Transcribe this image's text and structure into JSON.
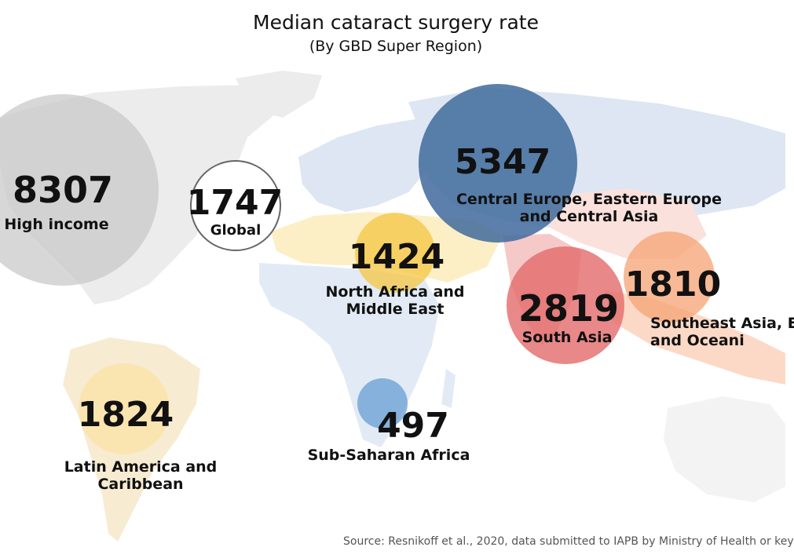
{
  "title": "Median cataract surgery rate",
  "subtitle": "(By GBD Super Region)",
  "source": "Source: Resnikoff et al., 2020, data submitted to IAPB by Ministry of Health or key",
  "chart_data": {
    "type": "bubble-map",
    "regions": [
      {
        "id": "high-income",
        "value": 8307,
        "label_lines": [
          "High income"
        ],
        "color": "#c9c9c9"
      },
      {
        "id": "global",
        "value": 1747,
        "label_lines": [
          "Global"
        ],
        "color": "#ffffff",
        "outline": "#666666"
      },
      {
        "id": "central-europe",
        "value": 5347,
        "label_lines": [
          "Central Europe, Eastern Europe",
          "and Central Asia"
        ],
        "color": "#3f6a9c"
      },
      {
        "id": "north-africa",
        "value": 1424,
        "label_lines": [
          "North Africa and",
          "Middle East"
        ],
        "color": "#f5c542"
      },
      {
        "id": "south-asia",
        "value": 2819,
        "label_lines": [
          "South Asia"
        ],
        "color": "#e36a6a"
      },
      {
        "id": "southeast-asia",
        "value": 1810,
        "label_lines": [
          "Southeast Asia, E",
          "and Oceani"
        ],
        "color": "#f5a373"
      },
      {
        "id": "latin-america",
        "value": 1824,
        "label_lines": [
          "Latin America and",
          "Caribbean"
        ],
        "color": "#fbe3a6"
      },
      {
        "id": "sub-saharan",
        "value": 497,
        "label_lines": [
          "Sub-Saharan Africa"
        ],
        "color": "#6fa3d6"
      }
    ]
  }
}
